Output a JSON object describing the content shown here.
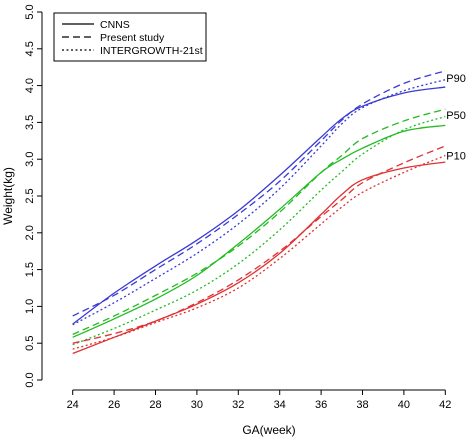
{
  "chart_data": {
    "type": "line",
    "xlabel": "GA(week)",
    "ylabel": "Weight(kg)",
    "xlim": [
      23,
      43
    ],
    "ylim": [
      0,
      5
    ],
    "x_ticks": [
      24,
      26,
      28,
      30,
      32,
      34,
      36,
      38,
      40,
      42
    ],
    "y_ticks": [
      "0.0",
      "0.5",
      "1.0",
      "1.5",
      "2.0",
      "2.5",
      "3.0",
      "3.5",
      "4.0",
      "4.5",
      "5.0"
    ],
    "legend": {
      "position": "top-left",
      "entries": [
        {
          "label": "CNNS",
          "style": "solid"
        },
        {
          "label": "Present study",
          "style": "dashed"
        },
        {
          "label": "INTERGROWTH-21st",
          "style": "dotted"
        }
      ]
    },
    "percentile_labels": [
      {
        "label": "P90",
        "at_x": 42,
        "at_y": 4.1
      },
      {
        "label": "P50",
        "at_x": 42,
        "at_y": 3.6
      },
      {
        "label": "P10",
        "at_x": 42,
        "at_y": 3.05
      }
    ],
    "colors": {
      "P90": "#3a3ad6",
      "P50": "#22bb22",
      "P10": "#e03030",
      "legend_line": "#000000"
    },
    "x": [
      24,
      26,
      28,
      30,
      32,
      34,
      36,
      37,
      38,
      40,
      42
    ],
    "series": [
      {
        "percentile": "P90",
        "source": "CNNS",
        "style": "solid",
        "values": [
          0.76,
          1.18,
          1.55,
          1.9,
          2.3,
          2.78,
          3.3,
          3.55,
          3.72,
          3.9,
          3.98
        ]
      },
      {
        "percentile": "P90",
        "source": "Present study",
        "style": "dashed",
        "values": [
          0.87,
          1.15,
          1.5,
          1.85,
          2.25,
          2.7,
          3.25,
          3.53,
          3.75,
          4.03,
          4.2
        ]
      },
      {
        "percentile": "P90",
        "source": "INTERGROWTH-21st",
        "style": "dotted",
        "values": [
          0.75,
          1.05,
          1.38,
          1.72,
          2.12,
          2.6,
          3.18,
          3.48,
          3.7,
          3.93,
          4.08
        ]
      },
      {
        "percentile": "P50",
        "source": "CNNS",
        "style": "solid",
        "values": [
          0.58,
          0.83,
          1.1,
          1.42,
          1.85,
          2.32,
          2.82,
          3.0,
          3.15,
          3.38,
          3.46
        ]
      },
      {
        "percentile": "P50",
        "source": "Present study",
        "style": "dashed",
        "values": [
          0.62,
          0.87,
          1.15,
          1.45,
          1.82,
          2.28,
          2.82,
          3.05,
          3.28,
          3.52,
          3.68
        ]
      },
      {
        "percentile": "P50",
        "source": "INTERGROWTH-21st",
        "style": "dotted",
        "values": [
          0.48,
          0.7,
          0.95,
          1.22,
          1.58,
          2.04,
          2.58,
          2.83,
          3.07,
          3.4,
          3.58
        ]
      },
      {
        "percentile": "P10",
        "source": "CNNS",
        "style": "solid",
        "values": [
          0.36,
          0.58,
          0.8,
          1.03,
          1.32,
          1.72,
          2.25,
          2.52,
          2.72,
          2.88,
          2.96
        ]
      },
      {
        "percentile": "P10",
        "source": "Present study",
        "style": "dashed",
        "values": [
          0.5,
          0.63,
          0.8,
          1.05,
          1.36,
          1.75,
          2.22,
          2.45,
          2.68,
          2.95,
          3.18
        ]
      },
      {
        "percentile": "P10",
        "source": "INTERGROWTH-21st",
        "style": "dotted",
        "values": [
          0.42,
          0.58,
          0.78,
          0.98,
          1.25,
          1.65,
          2.12,
          2.35,
          2.55,
          2.82,
          3.05
        ]
      }
    ]
  }
}
